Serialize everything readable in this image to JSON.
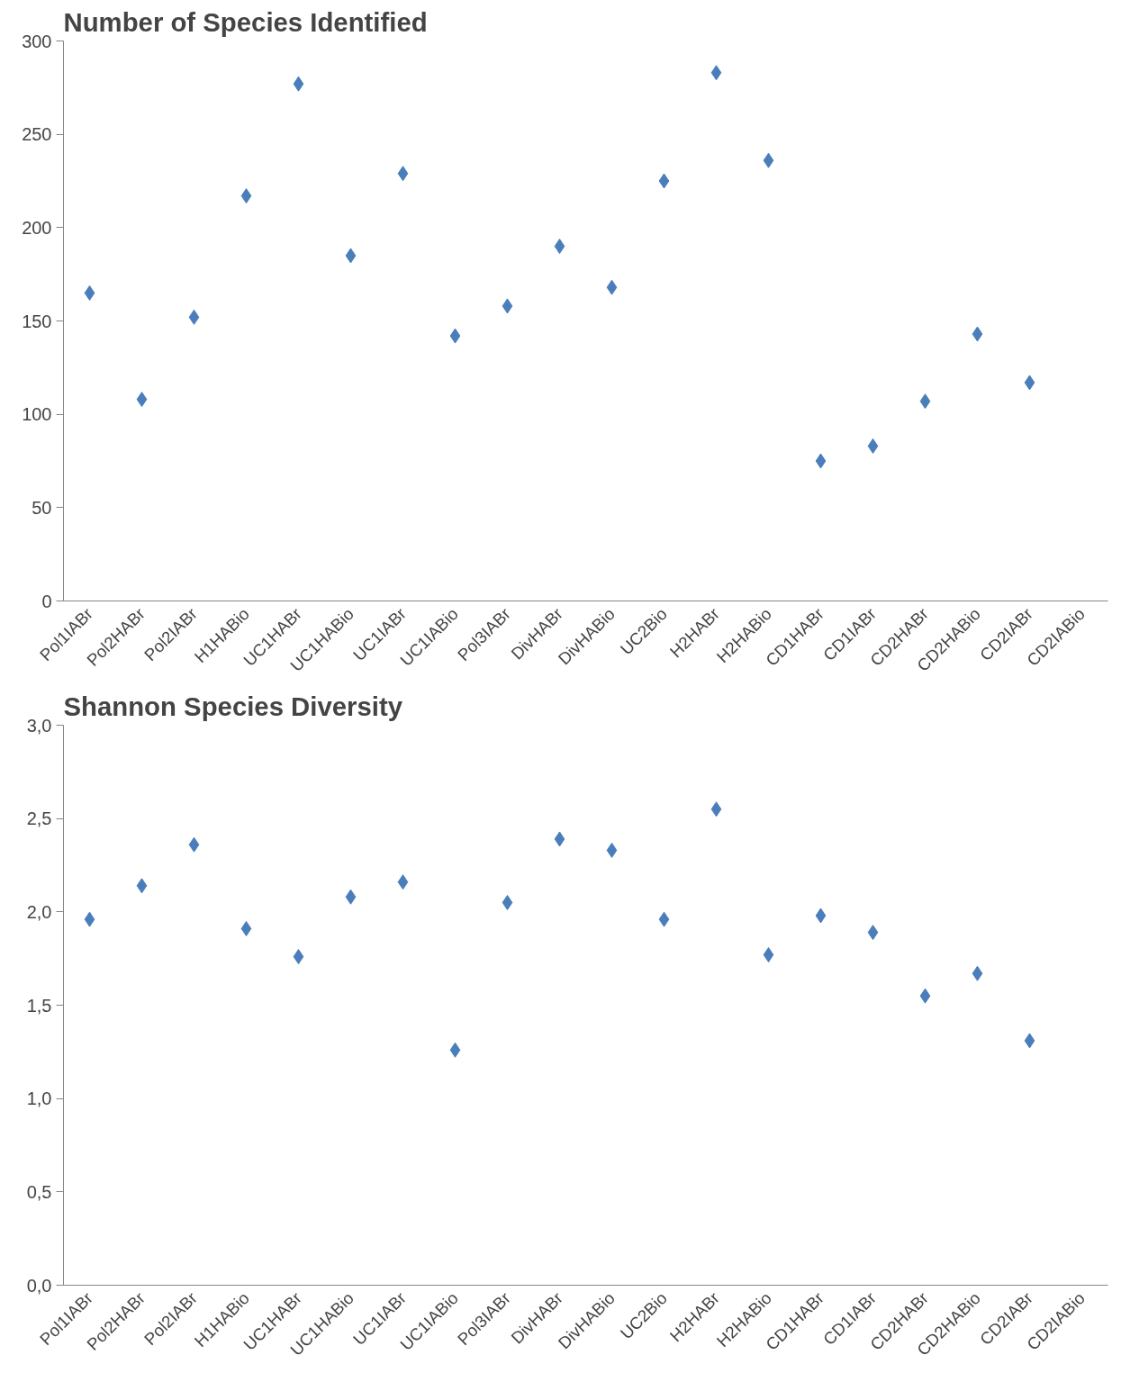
{
  "chart_data": [
    {
      "type": "scatter",
      "title": "Number of Species Identified",
      "categories": [
        "Pol1IABr",
        "Pol2HABr",
        "Pol2IABr",
        "H1HABio",
        "UC1HABr",
        "UC1HABio",
        "UC1IABr",
        "UC1IABio",
        "Pol3IABr",
        "DivHABr",
        "DivHABio",
        "UC2Bio",
        "H2HABr",
        "H2HABio",
        "CD1HABr",
        "CD1IABr",
        "CD2HABr",
        "CD2HABio",
        "CD2IABr",
        "CD2IABio"
      ],
      "series": [
        {
          "color": "#4a7ebb",
          "values": [
            165,
            108,
            152,
            217,
            277,
            185,
            229,
            142,
            158,
            190,
            168,
            225,
            283,
            236,
            75,
            83,
            107,
            143,
            117,
            null
          ]
        }
      ],
      "ylim": [
        0,
        300
      ],
      "yticks": [
        0,
        50,
        100,
        150,
        200,
        250,
        300
      ],
      "marker": "diamond"
    },
    {
      "type": "scatter",
      "title": "Shannon Species  Diversity",
      "categories": [
        "Pol1IABr",
        "Pol2HABr",
        "Pol2IABr",
        "H1HABio",
        "UC1HABr",
        "UC1HABio",
        "UC1IABr",
        "UC1IABio",
        "Pol3IABr",
        "DivHABr",
        "DivHABio",
        "UC2Bio",
        "H2HABr",
        "H2HABio",
        "CD1HABr",
        "CD1IABr",
        "CD2HABr",
        "CD2HABio",
        "CD2IABr",
        "CD2IABio"
      ],
      "series": [
        {
          "color": "#4a7ebb",
          "values": [
            1.96,
            2.14,
            2.36,
            1.91,
            1.76,
            2.08,
            2.16,
            1.26,
            2.05,
            2.39,
            2.33,
            1.96,
            2.55,
            1.77,
            1.98,
            1.89,
            1.55,
            1.67,
            1.31,
            null
          ]
        }
      ],
      "ylim": [
        0,
        3
      ],
      "yticks": [
        {
          "value": 0,
          "label": "0,0"
        },
        {
          "value": 0.5,
          "label": "0,5"
        },
        {
          "value": 1,
          "label": "1,0"
        },
        {
          "value": 1.5,
          "label": "1,5"
        },
        {
          "value": 2,
          "label": "2,0"
        },
        {
          "value": 2.5,
          "label": "2,5"
        },
        {
          "value": 3,
          "label": "3,0"
        }
      ],
      "marker": "diamond"
    }
  ]
}
